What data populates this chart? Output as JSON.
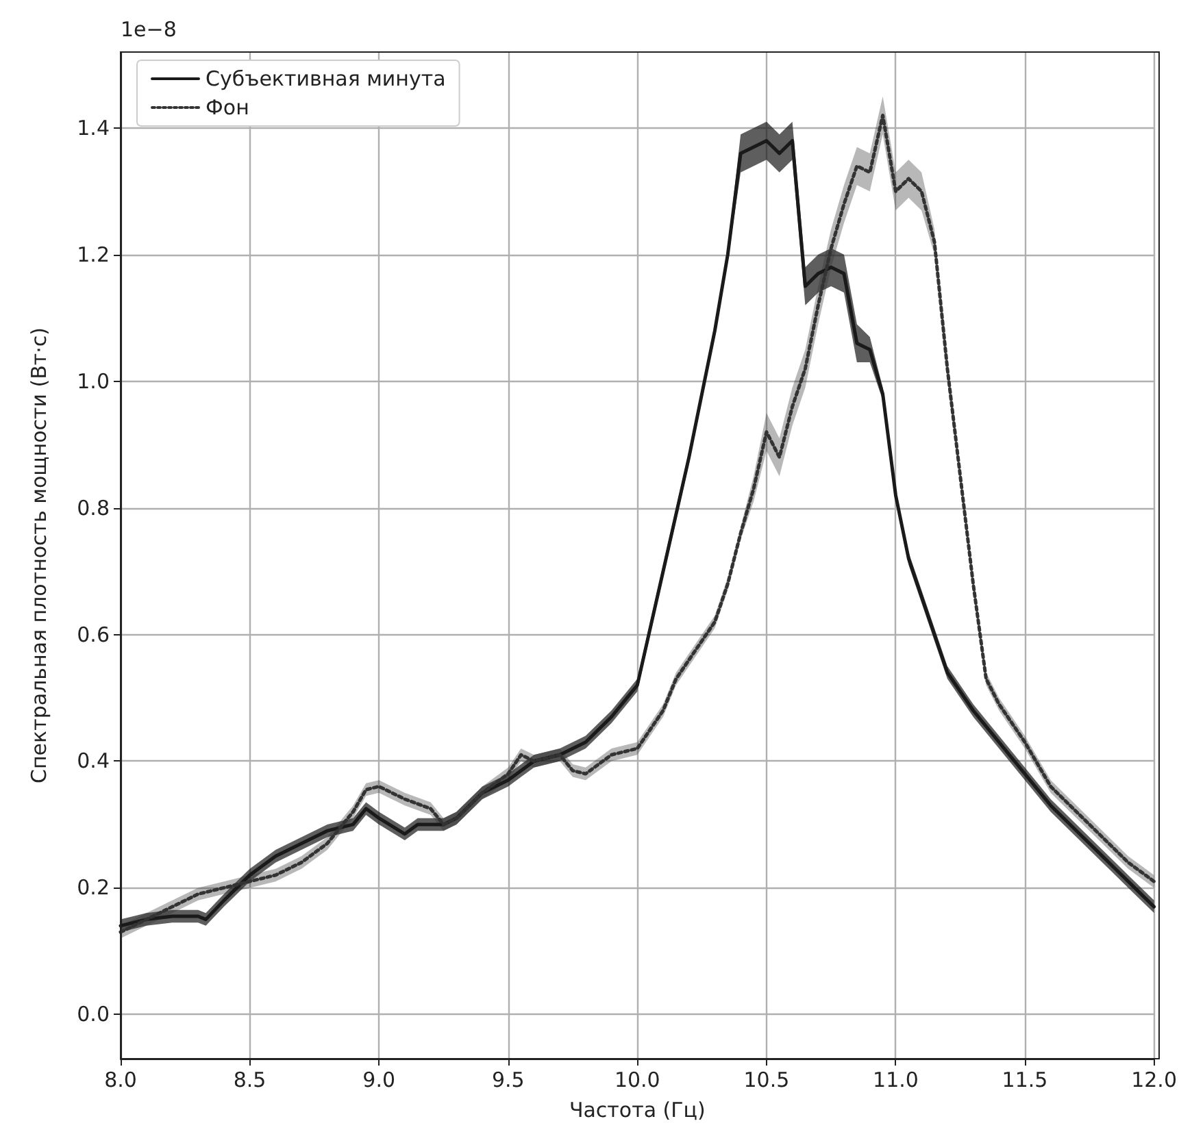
{
  "chart_data": {
    "type": "line",
    "xlabel": "Частота (Гц)",
    "ylabel": "Спектральная плотность мощности (Вт·с)",
    "annotations": [
      "1e−8"
    ],
    "xlim": [
      8.0,
      12.0
    ],
    "xticks": [
      {
        "value": 8,
        "label": "8.0"
      },
      {
        "value": 8.5,
        "label": "8.5"
      },
      {
        "value": 9,
        "label": "9.0"
      },
      {
        "value": 9.5,
        "label": "9.5"
      },
      {
        "value": 10,
        "label": "10.0"
      },
      {
        "value": 10.5,
        "label": "10.5"
      },
      {
        "value": 11,
        "label": "11.0"
      },
      {
        "value": 11.5,
        "label": "11.5"
      },
      {
        "value": 12,
        "label": "12.0"
      }
    ],
    "ylim": [
      -0.07,
      1.52
    ],
    "yticks": [
      {
        "value": 0,
        "label": "0.0"
      },
      {
        "value": 0.2,
        "label": "0.2"
      },
      {
        "value": 0.4,
        "label": "0.4"
      },
      {
        "value": 0.6,
        "label": "0.6"
      },
      {
        "value": 0.8,
        "label": "0.8"
      },
      {
        "value": 1,
        "label": "1.0"
      },
      {
        "value": 1.2,
        "label": "1.2"
      },
      {
        "value": 1.4,
        "label": "1.4"
      }
    ],
    "grid": true,
    "legend": "top left",
    "marker": "none",
    "series": [
      {
        "name": "Субъективная минута",
        "color": "#1a1a1a",
        "line_style": "solid",
        "x": [
          8.0,
          8.1,
          8.2,
          8.3,
          8.33,
          8.4,
          8.5,
          8.6,
          8.7,
          8.8,
          8.9,
          8.95,
          9.0,
          9.1,
          9.15,
          9.25,
          9.3,
          9.4,
          9.5,
          9.6,
          9.7,
          9.8,
          9.9,
          10.0,
          10.1,
          10.2,
          10.3,
          10.35,
          10.4,
          10.45,
          10.5,
          10.55,
          10.6,
          10.65,
          10.7,
          10.75,
          10.8,
          10.85,
          10.9,
          10.95,
          11.0,
          11.05,
          11.1,
          11.2,
          11.3,
          11.4,
          11.5,
          11.6,
          11.7,
          11.8,
          11.9,
          12.0
        ],
        "values": [
          0.14,
          0.15,
          0.155,
          0.155,
          0.15,
          0.18,
          0.22,
          0.25,
          0.27,
          0.29,
          0.3,
          0.325,
          0.31,
          0.285,
          0.3,
          0.3,
          0.31,
          0.35,
          0.37,
          0.4,
          0.41,
          0.43,
          0.47,
          0.52,
          0.7,
          0.88,
          1.08,
          1.2,
          1.36,
          1.37,
          1.38,
          1.36,
          1.38,
          1.15,
          1.17,
          1.18,
          1.17,
          1.06,
          1.05,
          0.98,
          0.82,
          0.72,
          0.66,
          0.54,
          0.48,
          0.43,
          0.38,
          0.33,
          0.29,
          0.25,
          0.21,
          0.17
        ],
        "lower": [
          0.13,
          0.14,
          0.145,
          0.145,
          0.14,
          0.17,
          0.21,
          0.24,
          0.26,
          0.28,
          0.29,
          0.315,
          0.3,
          0.275,
          0.29,
          0.29,
          0.3,
          0.34,
          0.36,
          0.39,
          0.4,
          0.42,
          0.46,
          0.51,
          0.69,
          0.87,
          1.07,
          1.19,
          1.33,
          1.34,
          1.35,
          1.33,
          1.35,
          1.12,
          1.14,
          1.15,
          1.14,
          1.03,
          1.03,
          0.97,
          0.81,
          0.71,
          0.65,
          0.53,
          0.47,
          0.42,
          0.37,
          0.32,
          0.28,
          0.24,
          0.2,
          0.16
        ],
        "upper": [
          0.15,
          0.16,
          0.165,
          0.165,
          0.16,
          0.19,
          0.23,
          0.26,
          0.28,
          0.3,
          0.31,
          0.335,
          0.32,
          0.295,
          0.31,
          0.31,
          0.32,
          0.36,
          0.38,
          0.41,
          0.42,
          0.44,
          0.48,
          0.53,
          0.71,
          0.89,
          1.09,
          1.21,
          1.39,
          1.4,
          1.41,
          1.39,
          1.41,
          1.18,
          1.2,
          1.21,
          1.2,
          1.09,
          1.07,
          0.99,
          0.83,
          0.73,
          0.67,
          0.55,
          0.49,
          0.44,
          0.39,
          0.34,
          0.3,
          0.26,
          0.22,
          0.18
        ]
      },
      {
        "name": "Фон",
        "color": "#333333",
        "line_style": "dotted",
        "x": [
          8.0,
          8.1,
          8.2,
          8.3,
          8.4,
          8.5,
          8.6,
          8.7,
          8.8,
          8.9,
          8.95,
          9.0,
          9.1,
          9.2,
          9.25,
          9.3,
          9.4,
          9.5,
          9.55,
          9.6,
          9.7,
          9.75,
          9.8,
          9.9,
          10.0,
          10.1,
          10.15,
          10.2,
          10.3,
          10.35,
          10.4,
          10.45,
          10.5,
          10.55,
          10.6,
          10.65,
          10.7,
          10.75,
          10.8,
          10.85,
          10.9,
          10.95,
          11.0,
          11.05,
          11.1,
          11.15,
          11.2,
          11.25,
          11.3,
          11.35,
          11.4,
          11.5,
          11.6,
          11.7,
          11.8,
          11.9,
          12.0
        ],
        "values": [
          0.13,
          0.15,
          0.17,
          0.19,
          0.2,
          0.21,
          0.22,
          0.24,
          0.27,
          0.32,
          0.355,
          0.36,
          0.34,
          0.325,
          0.3,
          0.31,
          0.35,
          0.38,
          0.41,
          0.4,
          0.41,
          0.385,
          0.38,
          0.41,
          0.42,
          0.48,
          0.53,
          0.56,
          0.62,
          0.68,
          0.76,
          0.83,
          0.92,
          0.88,
          0.96,
          1.02,
          1.12,
          1.21,
          1.28,
          1.34,
          1.33,
          1.42,
          1.3,
          1.32,
          1.3,
          1.22,
          1.02,
          0.85,
          0.68,
          0.53,
          0.49,
          0.43,
          0.36,
          0.32,
          0.28,
          0.24,
          0.21
        ],
        "lower": [
          0.12,
          0.14,
          0.16,
          0.18,
          0.19,
          0.2,
          0.21,
          0.23,
          0.26,
          0.31,
          0.345,
          0.35,
          0.33,
          0.315,
          0.29,
          0.3,
          0.34,
          0.37,
          0.4,
          0.39,
          0.4,
          0.375,
          0.37,
          0.4,
          0.41,
          0.47,
          0.52,
          0.55,
          0.61,
          0.67,
          0.75,
          0.81,
          0.89,
          0.85,
          0.93,
          0.99,
          1.09,
          1.18,
          1.25,
          1.31,
          1.3,
          1.39,
          1.27,
          1.29,
          1.27,
          1.2,
          1.0,
          0.84,
          0.67,
          0.52,
          0.48,
          0.42,
          0.35,
          0.31,
          0.27,
          0.23,
          0.2
        ],
        "upper": [
          0.14,
          0.16,
          0.18,
          0.2,
          0.21,
          0.22,
          0.23,
          0.25,
          0.28,
          0.33,
          0.365,
          0.37,
          0.35,
          0.335,
          0.31,
          0.32,
          0.36,
          0.39,
          0.42,
          0.41,
          0.42,
          0.395,
          0.39,
          0.42,
          0.43,
          0.49,
          0.54,
          0.57,
          0.63,
          0.69,
          0.77,
          0.85,
          0.95,
          0.91,
          0.99,
          1.05,
          1.15,
          1.24,
          1.31,
          1.37,
          1.36,
          1.45,
          1.33,
          1.35,
          1.33,
          1.24,
          1.04,
          0.86,
          0.69,
          0.54,
          0.5,
          0.44,
          0.37,
          0.33,
          0.29,
          0.25,
          0.22
        ]
      }
    ]
  }
}
